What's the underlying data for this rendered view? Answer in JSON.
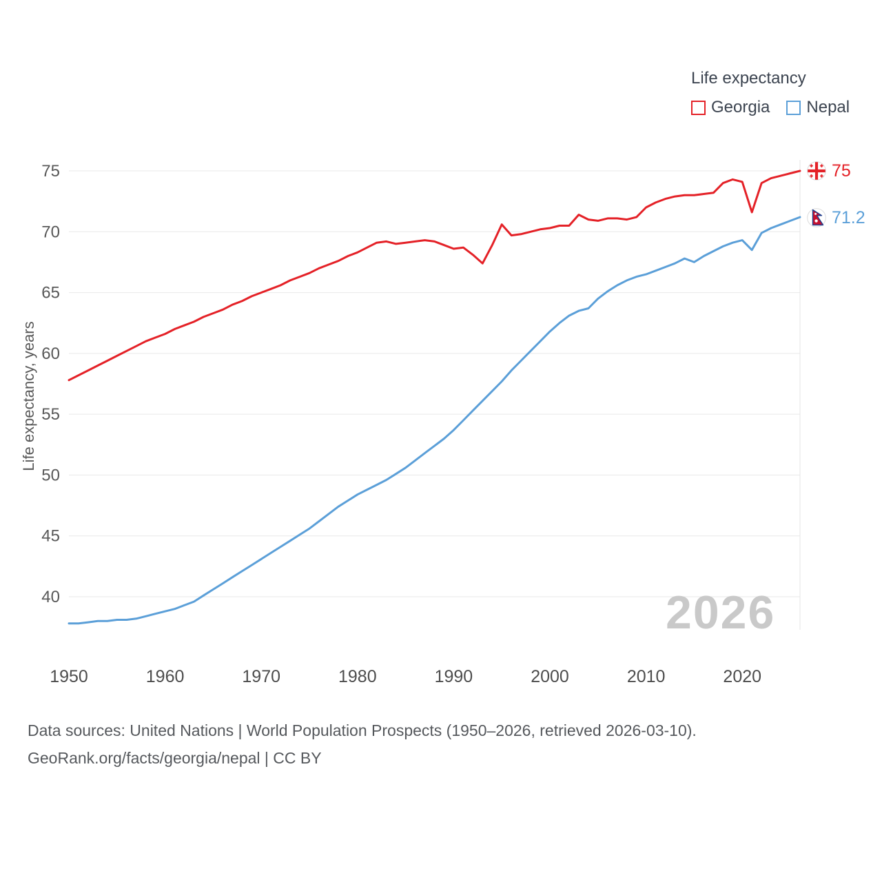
{
  "watermark": "2026",
  "footer": {
    "line1": "Data sources: United Nations | World Population Prospects (1950–2026, retrieved 2026-03-10).",
    "line2": "GeoRank.org/facts/georgia/nepal | CC BY"
  },
  "chart_data": {
    "type": "line",
    "title": "Life expectancy",
    "xlabel": "",
    "ylabel": "Life expectancy, years",
    "legend_position": "top-right",
    "grid": "horizontal",
    "x_range": [
      1950,
      2026
    ],
    "x_ticks": [
      1950,
      1960,
      1970,
      1980,
      1990,
      2000,
      2010,
      2020
    ],
    "y_ticks": [
      40,
      45,
      50,
      55,
      60,
      65,
      70,
      75
    ],
    "x": [
      1950,
      1951,
      1952,
      1953,
      1954,
      1955,
      1956,
      1957,
      1958,
      1959,
      1960,
      1961,
      1962,
      1963,
      1964,
      1965,
      1966,
      1967,
      1968,
      1969,
      1970,
      1971,
      1972,
      1973,
      1974,
      1975,
      1976,
      1977,
      1978,
      1979,
      1980,
      1981,
      1982,
      1983,
      1984,
      1985,
      1986,
      1987,
      1988,
      1989,
      1990,
      1991,
      1992,
      1993,
      1994,
      1995,
      1996,
      1997,
      1998,
      1999,
      2000,
      2001,
      2002,
      2003,
      2004,
      2005,
      2006,
      2007,
      2008,
      2009,
      2010,
      2011,
      2012,
      2013,
      2014,
      2015,
      2016,
      2017,
      2018,
      2019,
      2020,
      2021,
      2022,
      2023,
      2024,
      2025,
      2026
    ],
    "series": [
      {
        "name": "Georgia",
        "color": "#e42127",
        "end_label": "75",
        "flag_icon": "georgia-flag-icon",
        "values": [
          57.8,
          58.2,
          58.6,
          59.0,
          59.4,
          59.8,
          60.2,
          60.6,
          61.0,
          61.3,
          61.6,
          62.0,
          62.3,
          62.6,
          63.0,
          63.3,
          63.6,
          64.0,
          64.3,
          64.7,
          65.0,
          65.3,
          65.6,
          66.0,
          66.3,
          66.6,
          67.0,
          67.3,
          67.6,
          68.0,
          68.3,
          68.7,
          69.1,
          69.2,
          69.0,
          69.1,
          69.2,
          69.3,
          69.2,
          68.9,
          68.6,
          68.7,
          68.1,
          67.4,
          68.9,
          70.6,
          69.7,
          69.8,
          70.0,
          70.2,
          70.3,
          70.5,
          70.5,
          71.4,
          71.0,
          70.9,
          71.1,
          71.1,
          71.0,
          71.2,
          72.0,
          72.4,
          72.7,
          72.9,
          73.0,
          73.0,
          73.1,
          73.2,
          74.0,
          74.3,
          74.1,
          71.6,
          74.0,
          74.4,
          74.6,
          74.8,
          75.0
        ]
      },
      {
        "name": "Nepal",
        "color": "#5b9fd8",
        "end_label": "71.2",
        "flag_icon": "nepal-flag-icon",
        "values": [
          37.8,
          37.8,
          37.9,
          38.0,
          38.0,
          38.1,
          38.1,
          38.2,
          38.4,
          38.6,
          38.8,
          39.0,
          39.3,
          39.6,
          40.1,
          40.6,
          41.1,
          41.6,
          42.1,
          42.6,
          43.1,
          43.6,
          44.1,
          44.6,
          45.1,
          45.6,
          46.2,
          46.8,
          47.4,
          47.9,
          48.4,
          48.8,
          49.2,
          49.6,
          50.1,
          50.6,
          51.2,
          51.8,
          52.4,
          53.0,
          53.7,
          54.5,
          55.3,
          56.1,
          56.9,
          57.7,
          58.6,
          59.4,
          60.2,
          61.0,
          61.8,
          62.5,
          63.1,
          63.5,
          63.7,
          64.5,
          65.1,
          65.6,
          66.0,
          66.3,
          66.5,
          66.8,
          67.1,
          67.4,
          67.8,
          67.5,
          68.0,
          68.4,
          68.8,
          69.1,
          69.3,
          68.5,
          69.9,
          70.3,
          70.6,
          70.9,
          71.2
        ]
      }
    ]
  }
}
